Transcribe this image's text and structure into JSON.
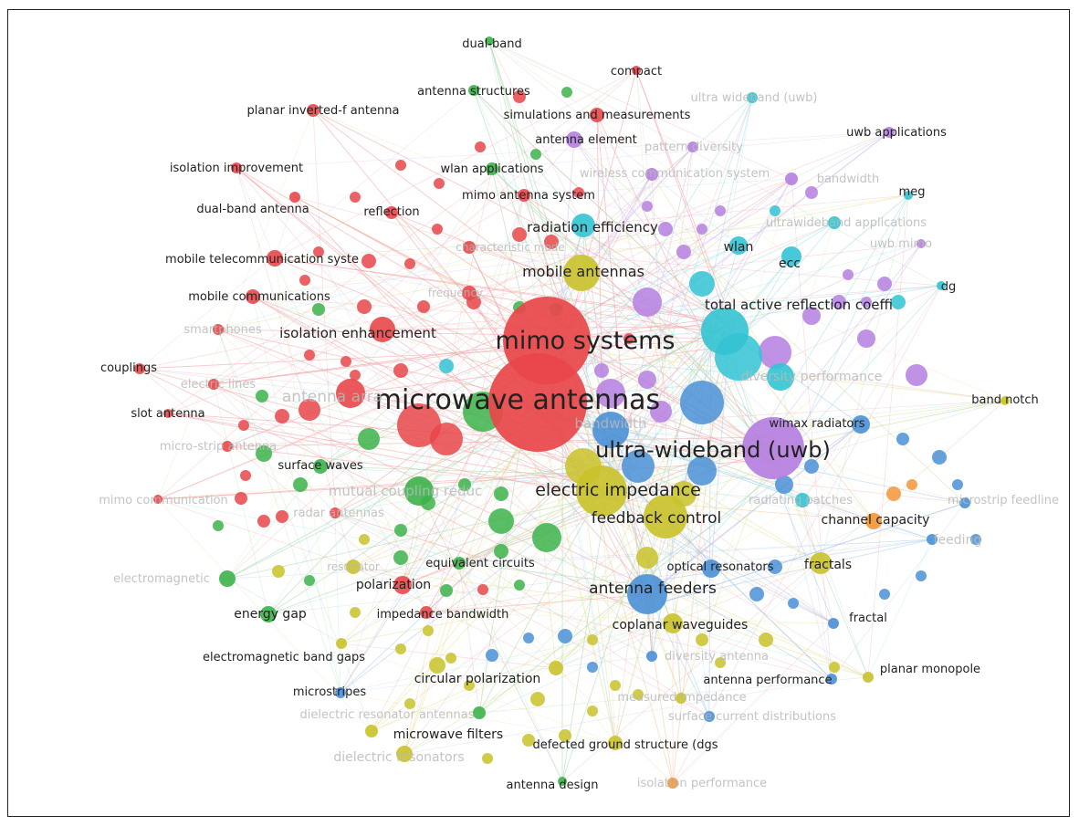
{
  "colors": {
    "red": "#e8474a",
    "green": "#3cb34a",
    "blue": "#4a90d6",
    "yellow": "#c9c22a",
    "purple": "#b57fe0",
    "cyan": "#33c3d3",
    "orange": "#f2963a"
  },
  "network": {
    "nodes": [
      {
        "label": "mimo systems",
        "c": "red",
        "s": "big"
      },
      {
        "label": "microwave antennas",
        "c": "red",
        "s": "big"
      },
      {
        "label": "ultra-wideband (uwb)",
        "c": "purple",
        "s": "big"
      },
      {
        "label": "electric impedance",
        "c": "yellow",
        "s": "mid"
      },
      {
        "label": "feedback control",
        "c": "yellow",
        "s": "mid"
      },
      {
        "label": "antenna feeders",
        "c": "blue",
        "s": "mid"
      },
      {
        "label": "mobile antennas",
        "c": "yellow",
        "s": "mid"
      },
      {
        "label": "total active reflection coeffi",
        "c": "cyan",
        "s": "mid"
      },
      {
        "label": "isolation enhancement",
        "c": "red",
        "s": "mid"
      },
      {
        "label": "radiation efficiency",
        "c": "cyan",
        "s": "mid"
      },
      {
        "label": "channel capacity",
        "c": "orange",
        "s": "mid"
      },
      {
        "label": "fractals",
        "c": "yellow",
        "s": "mid"
      },
      {
        "label": "wlan",
        "c": "cyan",
        "s": "mid"
      },
      {
        "label": "ecc",
        "c": "cyan",
        "s": "mid"
      },
      {
        "label": "coplanar waveguides",
        "c": "yellow",
        "s": "mid"
      },
      {
        "label": "mutual coupling reduc",
        "c": "green",
        "s": "faded"
      },
      {
        "label": "antenna arra",
        "c": "red",
        "s": "faded"
      },
      {
        "label": "bandwidth",
        "c": "blue",
        "s": "faded"
      },
      {
        "label": "dual-band",
        "c": "green",
        "s": "small"
      },
      {
        "label": "compact",
        "c": "red",
        "s": "small"
      },
      {
        "label": "antenna structures",
        "c": "green",
        "s": "small"
      },
      {
        "label": "ultra wideband (uwb)",
        "c": "cyan",
        "s": "faded"
      },
      {
        "label": "planar inverted-f antenna",
        "c": "red",
        "s": "small"
      },
      {
        "label": "simulations and measurements",
        "c": "red",
        "s": "small"
      },
      {
        "label": "uwb applications",
        "c": "purple",
        "s": "small"
      },
      {
        "label": "antenna element",
        "c": "purple",
        "s": "small"
      },
      {
        "label": "pattern diversity",
        "c": "purple",
        "s": "faded"
      },
      {
        "label": "isolation improvement",
        "c": "red",
        "s": "small"
      },
      {
        "label": "wlan applications",
        "c": "green",
        "s": "small"
      },
      {
        "label": "wireless communication system",
        "c": "purple",
        "s": "faded"
      },
      {
        "label": "bandwidth",
        "c": "purple",
        "s": "faded"
      },
      {
        "label": "meg",
        "c": "cyan",
        "s": "small"
      },
      {
        "label": "dual-band antenna",
        "c": "red",
        "s": "small"
      },
      {
        "label": "reflection",
        "c": "red",
        "s": "small"
      },
      {
        "label": "mimo antenna system",
        "c": "red",
        "s": "small"
      },
      {
        "label": "ultrawideband applications",
        "c": "cyan",
        "s": "faded"
      },
      {
        "label": "uwb mimo",
        "c": "purple",
        "s": "faded"
      },
      {
        "label": "characteristic mode",
        "c": "red",
        "s": "faded"
      },
      {
        "label": "mobile telecommunication syste",
        "c": "red",
        "s": "small"
      },
      {
        "label": "dg",
        "c": "cyan",
        "s": "small"
      },
      {
        "label": "frequency",
        "c": "red",
        "s": "faded"
      },
      {
        "label": "mobile communications",
        "c": "red",
        "s": "small"
      },
      {
        "label": "smartphones",
        "c": "red",
        "s": "faded"
      },
      {
        "label": "couplings",
        "c": "red",
        "s": "small"
      },
      {
        "label": "electric lines",
        "c": "red",
        "s": "faded"
      },
      {
        "label": "diversity performance",
        "c": "cyan",
        "s": "faded"
      },
      {
        "label": "band notch",
        "c": "yellow",
        "s": "small"
      },
      {
        "label": "slot antenna",
        "c": "red",
        "s": "small"
      },
      {
        "label": "wimax radiators",
        "c": "blue",
        "s": "small"
      },
      {
        "label": "micro-strip antenna",
        "c": "red",
        "s": "faded"
      },
      {
        "label": "surface waves",
        "c": "green",
        "s": "small"
      },
      {
        "label": "mimo communication",
        "c": "red",
        "s": "faded"
      },
      {
        "label": "radiating patches",
        "c": "cyan",
        "s": "faded"
      },
      {
        "label": "microstrip feedline",
        "c": "blue",
        "s": "faded"
      },
      {
        "label": "radar antennas",
        "c": "red",
        "s": "faded"
      },
      {
        "label": "feeding",
        "c": "blue",
        "s": "faded"
      },
      {
        "label": "resonator",
        "c": "yellow",
        "s": "faded"
      },
      {
        "label": "equivalent circuits",
        "c": "green",
        "s": "small"
      },
      {
        "label": "electromagnetic",
        "c": "green",
        "s": "faded"
      },
      {
        "label": "optical resonators",
        "c": "blue",
        "s": "small"
      },
      {
        "label": "polarization",
        "c": "red",
        "s": "small"
      },
      {
        "label": "energy gap",
        "c": "green",
        "s": "small"
      },
      {
        "label": "impedance bandwidth",
        "c": "red",
        "s": "small"
      },
      {
        "label": "fractal",
        "c": "blue",
        "s": "small"
      },
      {
        "label": "electromagnetic band gaps",
        "c": "yellow",
        "s": "small"
      },
      {
        "label": "diversity antenna",
        "c": "blue",
        "s": "faded"
      },
      {
        "label": "planar monopole",
        "c": "yellow",
        "s": "small"
      },
      {
        "label": "microstripes",
        "c": "blue",
        "s": "small"
      },
      {
        "label": "circular polarization",
        "c": "yellow",
        "s": "small"
      },
      {
        "label": "antenna performance",
        "c": "blue",
        "s": "small"
      },
      {
        "label": "measured impedance",
        "c": "yellow",
        "s": "faded"
      },
      {
        "label": "dielectric resonator antennas",
        "c": "green",
        "s": "faded"
      },
      {
        "label": "surface current distributions",
        "c": "blue",
        "s": "faded"
      },
      {
        "label": "microwave filters",
        "c": "yellow",
        "s": "small"
      },
      {
        "label": "defected ground structure (dgs",
        "c": "yellow",
        "s": "small"
      },
      {
        "label": "dielectric resonators",
        "c": "yellow",
        "s": "faded"
      },
      {
        "label": "antenna design",
        "c": "green",
        "s": "small"
      },
      {
        "label": "isolation performance",
        "c": "orange",
        "s": "faded"
      }
    ]
  }
}
